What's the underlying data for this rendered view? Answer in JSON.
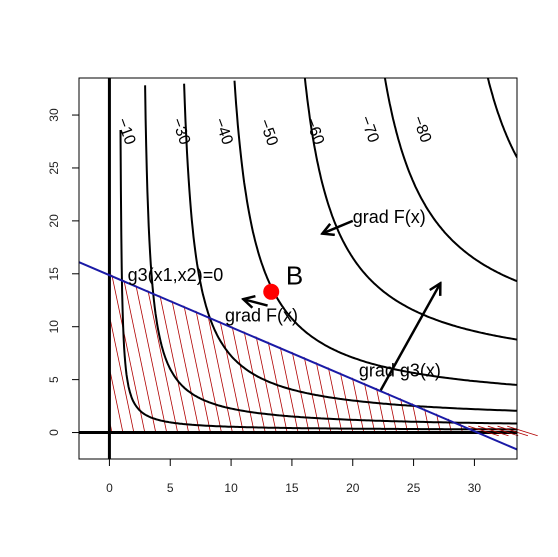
{
  "chart_data": {
    "type": "line",
    "title": "",
    "xlabel": "",
    "ylabel": "",
    "xlim": [
      -2.5,
      33.5
    ],
    "ylim": [
      -2.5,
      33.5
    ],
    "x_ticks": [
      0,
      5,
      10,
      15,
      20,
      25,
      30
    ],
    "y_ticks": [
      0,
      5,
      10,
      15,
      20,
      25,
      30
    ],
    "grid": false,
    "axes_lines": {
      "x_axis_y": 0,
      "y_axis_x": 0
    },
    "contour_levels": [
      {
        "label": "−10",
        "level": -10
      },
      {
        "label": "−30",
        "level": -30
      },
      {
        "label": "−40",
        "level": -40
      },
      {
        "label": "−50",
        "level": -50
      },
      {
        "label": "−60",
        "level": -60
      },
      {
        "label": "−70",
        "level": -70
      },
      {
        "label": "−80",
        "level": -80
      }
    ],
    "constraint_line": {
      "x": [
        -2.5,
        33.5
      ],
      "y": [
        16.1,
        -1.6
      ],
      "color": "#1a1aa6"
    },
    "feasible_region": {
      "vertices": [
        [
          0,
          0
        ],
        [
          0,
          15
        ],
        [
          30.5,
          0
        ]
      ],
      "hatch_color": "#b00000"
    },
    "point_B": {
      "x": 13.3,
      "y": 13.3,
      "color": "#ff0000"
    },
    "annotations": [
      {
        "text": "B",
        "x": 14.5,
        "y": 14.0,
        "size": "big"
      },
      {
        "text": "g3(x1,x2)=0",
        "x": 1.5,
        "y": 14.3,
        "size": "normal"
      },
      {
        "text": "grad F(x)",
        "x": 9.5,
        "y": 10.5,
        "size": "normal"
      },
      {
        "text": "grad F(x)",
        "x": 20.0,
        "y": 19.8,
        "size": "normal"
      },
      {
        "text": "grad g3(x)",
        "x": 20.5,
        "y": 5.3,
        "size": "normal"
      }
    ],
    "arrows": [
      {
        "name": "grad-f-arrow-upper",
        "from": [
          20.0,
          20.0
        ],
        "to": [
          17.5,
          18.8
        ]
      },
      {
        "name": "grad-f-arrow-lower",
        "from": [
          13.0,
          12.0
        ],
        "to": [
          11.0,
          12.6
        ]
      },
      {
        "name": "grad-g3-arrow",
        "from": [
          22.3,
          4.0
        ],
        "to": [
          27.2,
          14.1
        ]
      }
    ]
  }
}
